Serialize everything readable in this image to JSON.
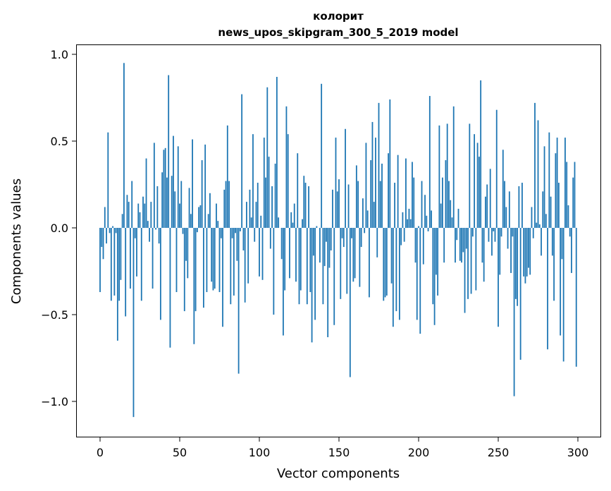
{
  "chart_data": {
    "type": "bar",
    "title_lines": [
      "колорит",
      "news_upos_skipgram_300_5_2019 model"
    ],
    "xlabel": "Vector components",
    "ylabel": "Components values",
    "xlim": [
      -15,
      315
    ],
    "ylim": [
      -1.2,
      1.05
    ],
    "xticks": [
      0,
      50,
      100,
      150,
      200,
      250,
      300
    ],
    "xtick_labels": [
      "0",
      "50",
      "100",
      "150",
      "200",
      "250",
      "300"
    ],
    "yticks": [
      1.0,
      0.5,
      0.0,
      -0.5,
      -1.0
    ],
    "ytick_labels": [
      "1.0",
      "0.5",
      "0.0",
      "−0.5",
      "−1.0"
    ],
    "grid": false,
    "bar_color": "#1f77b4",
    "values": [
      -0.37,
      -0.11,
      -0.18,
      0.12,
      -0.09,
      0.55,
      -0.03,
      -0.42,
      0.01,
      -0.39,
      -0.03,
      -0.65,
      -0.42,
      -0.3,
      0.08,
      0.95,
      -0.51,
      0.19,
      0.15,
      -0.35,
      0.27,
      -1.09,
      -0.06,
      -0.28,
      0.14,
      0.09,
      -0.42,
      0.18,
      0.14,
      0.4,
      0.04,
      -0.08,
      0.15,
      -0.35,
      0.49,
      -0.01,
      0.24,
      -0.09,
      -0.53,
      0.32,
      0.45,
      0.46,
      0.29,
      0.88,
      -0.69,
      0.3,
      0.53,
      0.21,
      -0.37,
      0.47,
      0.14,
      0.27,
      -0.035,
      -0.48,
      -0.19,
      -0.29,
      0.23,
      0.08,
      0.51,
      -0.67,
      -0.48,
      -0.025,
      0.12,
      0.13,
      0.39,
      -0.46,
      0.48,
      -0.37,
      0.08,
      0.2,
      -0.31,
      -0.36,
      -0.35,
      0.14,
      0.04,
      -0.37,
      -0.06,
      -0.57,
      0.22,
      0.27,
      0.59,
      0.27,
      -0.44,
      -0.06,
      -0.39,
      -0.03,
      -0.19,
      -0.84,
      -0.02,
      0.77,
      -0.13,
      -0.43,
      0.15,
      -0.32,
      0.22,
      0.06,
      0.54,
      -0.08,
      0.15,
      0.26,
      -0.28,
      0.07,
      -0.3,
      0.52,
      0.29,
      0.81,
      0.41,
      -0.12,
      0.24,
      -0.5,
      0.37,
      0.87,
      0.06,
      0.0,
      -0.18,
      -0.62,
      -0.36,
      0.7,
      0.54,
      -0.29,
      0.09,
      0.03,
      0.14,
      -0.31,
      0.43,
      -0.44,
      -0.36,
      0.05,
      0.3,
      0.26,
      -0.44,
      0.24,
      -0.37,
      -0.66,
      -0.16,
      -0.53,
      0.01,
      0.0,
      -0.2,
      0.83,
      -0.44,
      -0.22,
      -0.08,
      -0.63,
      -0.23,
      -0.13,
      0.22,
      -0.56,
      0.52,
      0.21,
      0.28,
      -0.41,
      -0.06,
      -0.11,
      0.57,
      -0.38,
      0.25,
      -0.86,
      -0.06,
      -0.31,
      -0.29,
      0.36,
      0.27,
      -0.34,
      -0.11,
      0.17,
      -0.03,
      0.49,
      0.1,
      -0.4,
      0.39,
      0.61,
      0.15,
      0.52,
      -0.17,
      0.72,
      0.27,
      0.37,
      -0.42,
      -0.4,
      -0.39,
      0.43,
      0.74,
      -0.32,
      -0.57,
      0.26,
      -0.48,
      0.42,
      -0.53,
      -0.1,
      0.09,
      -0.08,
      0.4,
      0.05,
      0.11,
      0.05,
      0.38,
      0.29,
      -0.2,
      -0.53,
      0.01,
      -0.61,
      0.27,
      -0.21,
      0.19,
      0.07,
      -0.02,
      0.76,
      0.1,
      -0.44,
      -0.56,
      -0.27,
      -0.39,
      0.59,
      0.14,
      0.29,
      -0.2,
      0.39,
      0.6,
      0.27,
      0.16,
      0.06,
      0.7,
      -0.2,
      -0.07,
      0.11,
      -0.19,
      -0.2,
      -0.14,
      -0.49,
      -0.12,
      -0.41,
      0.6,
      -0.38,
      -0.05,
      0.54,
      -0.36,
      0.49,
      0.41,
      0.85,
      -0.2,
      -0.31,
      0.18,
      0.25,
      -0.08,
      0.34,
      -0.16,
      -0.02,
      -0.08,
      0.68,
      -0.57,
      -0.27,
      -0.05,
      0.45,
      0.27,
      0.12,
      -0.12,
      0.21,
      -0.26,
      -0.05,
      -0.97,
      -0.41,
      -0.45,
      0.24,
      -0.76,
      0.26,
      -0.28,
      -0.32,
      -0.28,
      -0.23,
      -0.27,
      0.12,
      -0.06,
      0.72,
      0.03,
      0.62,
      0.02,
      -0.16,
      0.21,
      0.47,
      0.08,
      -0.7,
      0.55,
      0.18,
      -0.16,
      -0.42,
      0.43,
      0.52,
      0.26,
      -0.62,
      -0.18,
      -0.77,
      0.52,
      0.38,
      0.13,
      -0.05,
      -0.26,
      0.29,
      0.38,
      -0.8
    ]
  }
}
